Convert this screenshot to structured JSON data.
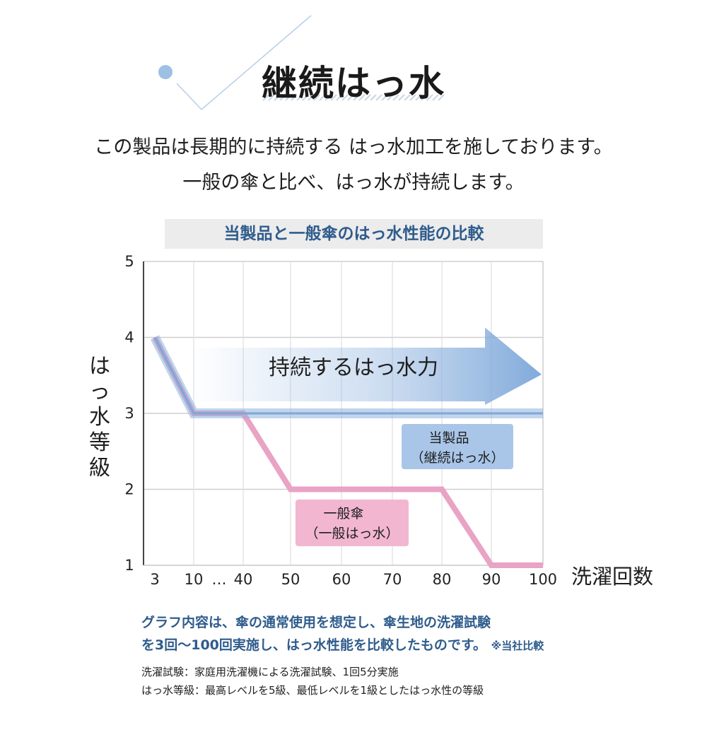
{
  "header": {
    "title": "継続はっ水",
    "intro_line1": "この製品は長期的に持続する はっ水加工を施しております。",
    "intro_line2": "一般の傘と比べ、はっ水が持続します。"
  },
  "chart_data": {
    "type": "line",
    "title": "当製品と一般傘のはっ水性能の比較",
    "xlabel": "洗濯回数",
    "ylabel": "はっ水等級",
    "x_ticks": [
      "3",
      "10",
      "…",
      "40",
      "50",
      "60",
      "70",
      "80",
      "90",
      "100"
    ],
    "y_ticks": [
      1,
      2,
      3,
      4,
      5
    ],
    "ylim": [
      1,
      5
    ],
    "grid": true,
    "arrow_label": "持続するはっ水力",
    "series": [
      {
        "name_line1": "当製品",
        "name_line2": "（継続はっ水）",
        "color": "#8fb3df",
        "label_box_color": "#a9c6e8",
        "x": [
          "3",
          "10",
          "40",
          "100"
        ],
        "y": [
          4,
          3,
          3,
          3
        ]
      },
      {
        "name_line1": "一般傘",
        "name_line2": "（一般はっ水）",
        "color": "#e9a3c4",
        "label_box_color": "#f2b6d1",
        "x": [
          "3",
          "10",
          "40",
          "50",
          "80",
          "90",
          "100"
        ],
        "y": [
          4,
          3,
          3,
          2,
          2,
          1,
          1
        ]
      }
    ]
  },
  "notes": {
    "line1": "グラフ内容は、傘の通常使用を想定し、傘生地の洗濯試験",
    "line2": "を3回〜100回実施し、はっ水性能を比較したものです。",
    "line2_small": "※当社比較",
    "def1": "洗濯試験：家庭用洗濯機による洗濯試験、1回5分実施",
    "def2": "はっ水等級：最高レベルを5級、最低レベルを1級としたはっ水性の等級"
  },
  "colors": {
    "accent_blue": "#2f5c8c",
    "grid": "#cfcfcf",
    "arrow": "#8fb3df",
    "deco_dot": "#9dc0e4"
  }
}
